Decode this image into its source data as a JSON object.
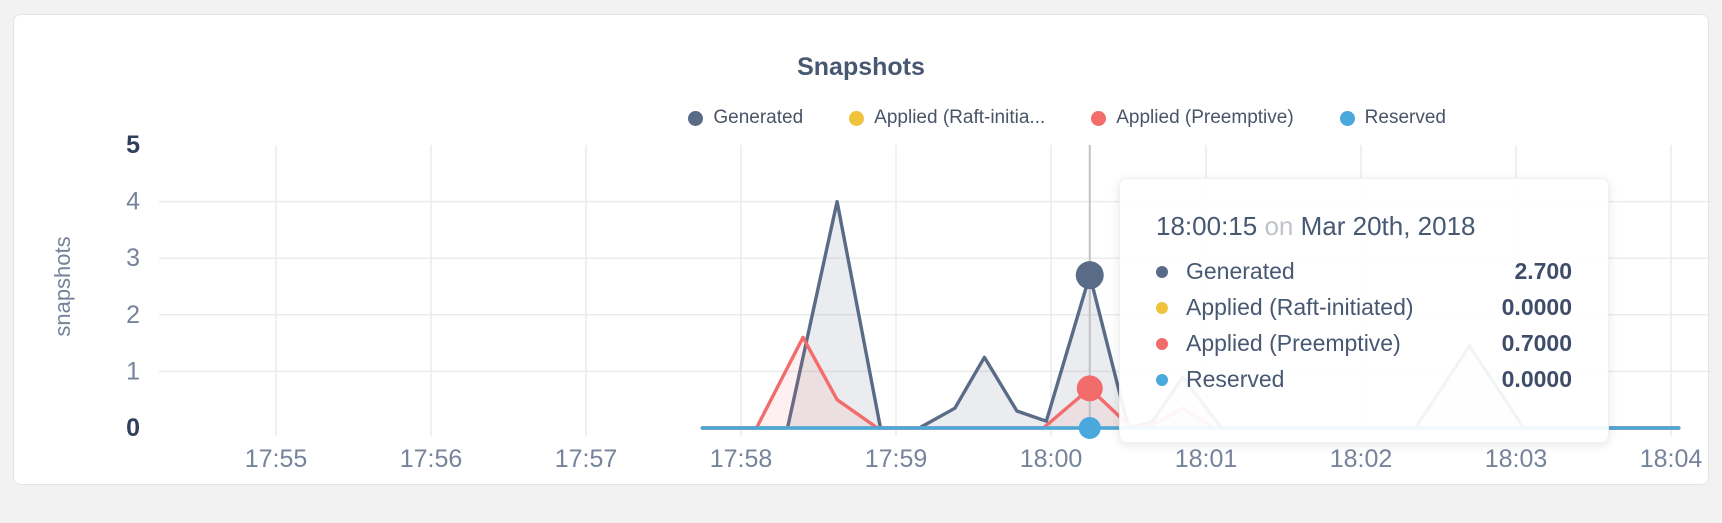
{
  "chart_data": {
    "type": "area",
    "title": "Snapshots",
    "ylabel": "snapshots",
    "ylim": [
      0,
      5
    ],
    "yticks": [
      0,
      1,
      2,
      3,
      4,
      5
    ],
    "ybold": [
      0,
      5
    ],
    "grid": true,
    "legend_position": "top-right",
    "xticks": [
      {
        "minute": 0,
        "label": "17:55"
      },
      {
        "minute": 1,
        "label": "17:56"
      },
      {
        "minute": 2,
        "label": "17:57"
      },
      {
        "minute": 3,
        "label": "17:58"
      },
      {
        "minute": 4,
        "label": "17:59"
      },
      {
        "minute": 5,
        "label": "18:00"
      },
      {
        "minute": 6,
        "label": "18:01"
      },
      {
        "minute": 7,
        "label": "18:02"
      },
      {
        "minute": 8,
        "label": "18:03"
      },
      {
        "minute": 9,
        "label": "18:04"
      }
    ],
    "series": [
      {
        "name": "Generated",
        "color": "#5a6b87",
        "fill": "rgba(93,108,136,0.13)",
        "points": [
          [
            2.75,
            0
          ],
          [
            3.3,
            0
          ],
          [
            3.62,
            4.0
          ],
          [
            3.9,
            0
          ],
          [
            4.15,
            0
          ],
          [
            4.38,
            0.35
          ],
          [
            4.57,
            1.25
          ],
          [
            4.78,
            0.3
          ],
          [
            4.97,
            0.12
          ],
          [
            5.25,
            2.7
          ],
          [
            5.5,
            0
          ],
          [
            5.65,
            0.1
          ],
          [
            5.85,
            0.9
          ],
          [
            6.1,
            0
          ],
          [
            7.35,
            0
          ],
          [
            7.7,
            1.45
          ],
          [
            8.05,
            0
          ],
          [
            9.05,
            0
          ]
        ]
      },
      {
        "name": "Applied (Raft-initiated)",
        "color": "#f0c33c",
        "fill": "rgba(240,195,60,0.10)",
        "points": [
          [
            2.75,
            0
          ],
          [
            9.05,
            0
          ]
        ]
      },
      {
        "name": "Applied (Preemptive)",
        "color": "#f26c6c",
        "fill": "rgba(242,108,108,0.10)",
        "points": [
          [
            2.75,
            0
          ],
          [
            3.1,
            0
          ],
          [
            3.4,
            1.6
          ],
          [
            3.62,
            0.5
          ],
          [
            3.88,
            0
          ],
          [
            4.95,
            0
          ],
          [
            5.25,
            0.7
          ],
          [
            5.52,
            0
          ],
          [
            5.65,
            0.05
          ],
          [
            5.85,
            0.35
          ],
          [
            6.05,
            0
          ],
          [
            9.05,
            0
          ]
        ]
      },
      {
        "name": "Reserved",
        "color": "#4aa8dd",
        "fill": "none",
        "points": [
          [
            2.75,
            0
          ],
          [
            9.05,
            0
          ]
        ]
      }
    ],
    "crosshair": {
      "minute": 5.25,
      "time_label": "18:00:15",
      "marker_values": [
        2.7,
        null,
        0.7,
        0
      ]
    }
  },
  "legend": {
    "items": [
      {
        "label": "Generated",
        "color": "#5a6b87"
      },
      {
        "label": "Applied (Raft-initia...",
        "color": "#f0c33c"
      },
      {
        "label": "Applied (Preemptive)",
        "color": "#f26c6c"
      },
      {
        "label": "Reserved",
        "color": "#4aa8dd"
      }
    ]
  },
  "tooltip": {
    "time": "18:00:15",
    "on_word": "on",
    "date": "Mar 20th, 2018",
    "rows": [
      {
        "label": "Generated",
        "value": "2.700",
        "color": "#5a6b87"
      },
      {
        "label": "Applied (Raft-initiated)",
        "value": "0.0000",
        "color": "#f0c33c"
      },
      {
        "label": "Applied (Preemptive)",
        "value": "0.7000",
        "color": "#f26c6c"
      },
      {
        "label": "Reserved",
        "value": "0.0000",
        "color": "#4aa8dd"
      }
    ]
  },
  "colors": {
    "axis_text": "#76839b",
    "axis_text_bold": "#2f3f5c",
    "grid": "#ececec",
    "crosshair": "#c2c2c2",
    "title": "#475872"
  }
}
